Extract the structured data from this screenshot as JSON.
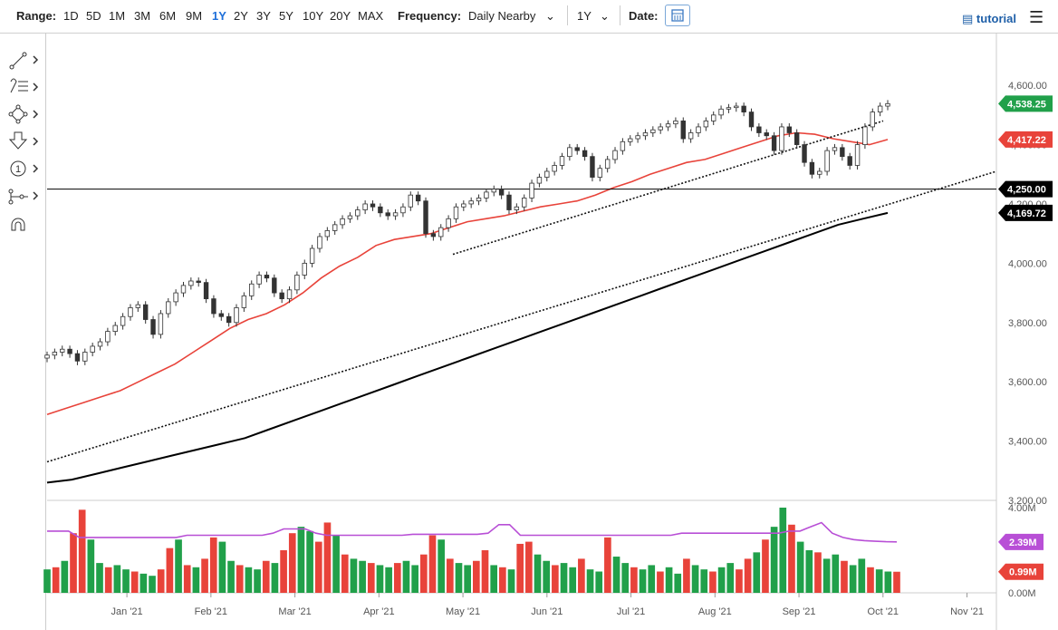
{
  "toolbar": {
    "range_label": "Range:",
    "ranges": [
      "1D",
      "5D",
      "1M",
      "3M",
      "6M",
      "9M",
      "1Y",
      "2Y",
      "3Y",
      "5Y",
      "10Y",
      "20Y",
      "MAX"
    ],
    "active_range": "1Y",
    "frequency_label": "Frequency:",
    "frequency_value": "Daily Nearby",
    "period_value": "1Y",
    "date_label": "Date:",
    "tutorial_label": "tutorial"
  },
  "sidebar": {
    "tools": [
      "trendline-icon",
      "fibonacci-icon",
      "shapes-icon",
      "arrow-icon",
      "counter-icon",
      "measure-icon",
      "magnet-icon"
    ]
  },
  "chart_data": {
    "type": "candlestick",
    "price_axis": {
      "ylim": [
        3200,
        4680
      ],
      "ticks": [
        3200,
        3400,
        3600,
        3800,
        4000,
        4200,
        4400,
        4600
      ],
      "tick_labels": [
        "3,200.00",
        "3,400.00",
        "3,600.00",
        "3,800.00",
        "4,000.00",
        "4,200.00",
        "4,400.00",
        "4,600.00"
      ]
    },
    "x_ticks": [
      "Jan '21",
      "Feb '21",
      "Mar '21",
      "Apr '21",
      "May '21",
      "Jun '21",
      "Jul '21",
      "Aug '21",
      "Sep '21",
      "Oct '21",
      "Nov '21"
    ],
    "closes_sampled": [
      3690,
      3700,
      3710,
      3695,
      3670,
      3700,
      3720,
      3735,
      3770,
      3790,
      3820,
      3850,
      3860,
      3810,
      3760,
      3830,
      3870,
      3900,
      3925,
      3940,
      3935,
      3880,
      3830,
      3820,
      3800,
      3850,
      3890,
      3930,
      3960,
      3950,
      3900,
      3880,
      3910,
      3960,
      4000,
      4050,
      4090,
      4110,
      4130,
      4150,
      4160,
      4180,
      4200,
      4190,
      4170,
      4160,
      4170,
      4190,
      4230,
      4210,
      4100,
      4090,
      4120,
      4150,
      4190,
      4200,
      4210,
      4220,
      4240,
      4250,
      4230,
      4180,
      4190,
      4220,
      4270,
      4290,
      4310,
      4330,
      4360,
      4390,
      4380,
      4360,
      4290,
      4320,
      4350,
      4380,
      4410,
      4420,
      4430,
      4440,
      4450,
      4460,
      4470,
      4480,
      4420,
      4440,
      4460,
      4480,
      4500,
      4520,
      4525,
      4530,
      4510,
      4460,
      4440,
      4430,
      4380,
      4460,
      4440,
      4400,
      4340,
      4300,
      4310,
      4380,
      4390,
      4360,
      4330,
      4400,
      4460,
      4510,
      4530,
      4538.25
    ],
    "ma_short_sampled": [
      3490,
      3510,
      3530,
      3550,
      3570,
      3600,
      3630,
      3660,
      3700,
      3740,
      3780,
      3810,
      3830,
      3860,
      3900,
      3950,
      3990,
      4020,
      4060,
      4080,
      4090,
      4100,
      4120,
      4140,
      4150,
      4160,
      4175,
      4190,
      4200,
      4210,
      4230,
      4255,
      4275,
      4300,
      4320,
      4340,
      4350,
      4370,
      4390,
      4410,
      4430,
      4440,
      4435,
      4420,
      4410,
      4400,
      4417.22
    ],
    "ma_long_sampled": [
      3260,
      3270,
      3290,
      3310,
      3330,
      3350,
      3370,
      3390,
      3410,
      3440,
      3470,
      3500,
      3530,
      3560,
      3590,
      3620,
      3650,
      3680,
      3710,
      3740,
      3770,
      3800,
      3830,
      3860,
      3890,
      3920,
      3950,
      3980,
      4010,
      4040,
      4070,
      4100,
      4130,
      4150,
      4169.72
    ],
    "volume_axis": {
      "ylim": [
        0,
        4.0
      ],
      "ticks": [
        0,
        4.0
      ],
      "tick_labels": [
        "0.00M",
        "4.00M"
      ]
    },
    "volume_sampled": [
      1.1,
      1.2,
      1.5,
      2.8,
      3.9,
      2.5,
      1.4,
      1.2,
      1.3,
      1.1,
      1.0,
      0.9,
      0.8,
      1.1,
      2.1,
      2.5,
      1.3,
      1.2,
      1.6,
      2.6,
      2.4,
      1.5,
      1.3,
      1.2,
      1.1,
      1.5,
      1.4,
      2.0,
      2.8,
      3.1,
      2.9,
      2.4,
      3.3,
      2.7,
      1.8,
      1.6,
      1.5,
      1.4,
      1.3,
      1.2,
      1.4,
      1.5,
      1.3,
      1.8,
      2.7,
      2.5,
      1.6,
      1.4,
      1.3,
      1.5,
      2.0,
      1.3,
      1.2,
      1.1,
      2.3,
      2.4,
      1.8,
      1.5,
      1.3,
      1.4,
      1.2,
      1.6,
      1.1,
      1.0,
      2.6,
      1.7,
      1.4,
      1.2,
      1.1,
      1.3,
      1.0,
      1.2,
      0.9,
      1.6,
      1.3,
      1.1,
      1.0,
      1.2,
      1.4,
      1.1,
      1.6,
      1.9,
      2.5,
      3.1,
      4.0,
      3.2,
      2.4,
      2.0,
      1.9,
      1.6,
      1.8,
      1.5,
      1.3,
      1.6,
      1.2,
      1.1,
      1.0,
      0.99
    ],
    "volume_avg": [
      2.9,
      2.9,
      2.9,
      2.6,
      2.6,
      2.6,
      2.6,
      2.6,
      2.6,
      2.6,
      2.6,
      2.6,
      2.6,
      2.7,
      2.7,
      2.7,
      2.7,
      2.7,
      2.7,
      2.7,
      2.7,
      2.8,
      3.0,
      3.0,
      3.0,
      2.8,
      2.7,
      2.7,
      2.7,
      2.7,
      2.7,
      2.7,
      2.7,
      2.7,
      2.75,
      2.75,
      2.75,
      2.75,
      2.75,
      2.75,
      2.75,
      2.8,
      3.2,
      3.2,
      2.7,
      2.7,
      2.7,
      2.7,
      2.7,
      2.7,
      2.7,
      2.7,
      2.7,
      2.7,
      2.7,
      2.7,
      2.7,
      2.7,
      2.7,
      2.8,
      2.8,
      2.8,
      2.8,
      2.8,
      2.8,
      2.8,
      2.8,
      2.8,
      2.8,
      2.9,
      2.9,
      3.1,
      3.3,
      2.8,
      2.6,
      2.5,
      2.45,
      2.42,
      2.4,
      2.39
    ],
    "price_labels": [
      {
        "text": "4,538.25",
        "color": "#21a04a"
      },
      {
        "text": "4,417.22",
        "color": "#e8433a"
      },
      {
        "text": "4,250.00",
        "color": "#000000"
      },
      {
        "text": "4,169.72",
        "color": "#000000"
      }
    ],
    "volume_labels": [
      {
        "text": "2.39M",
        "color": "#b84fd6"
      },
      {
        "text": "0.99M",
        "color": "#e8433a"
      }
    ],
    "horizontal_line": 4250,
    "colors": {
      "up": "#21a04a",
      "down": "#e8433a",
      "ma_short": "#e8433a",
      "ma_long": "#000000",
      "volume_avg": "#b84fd6"
    }
  }
}
